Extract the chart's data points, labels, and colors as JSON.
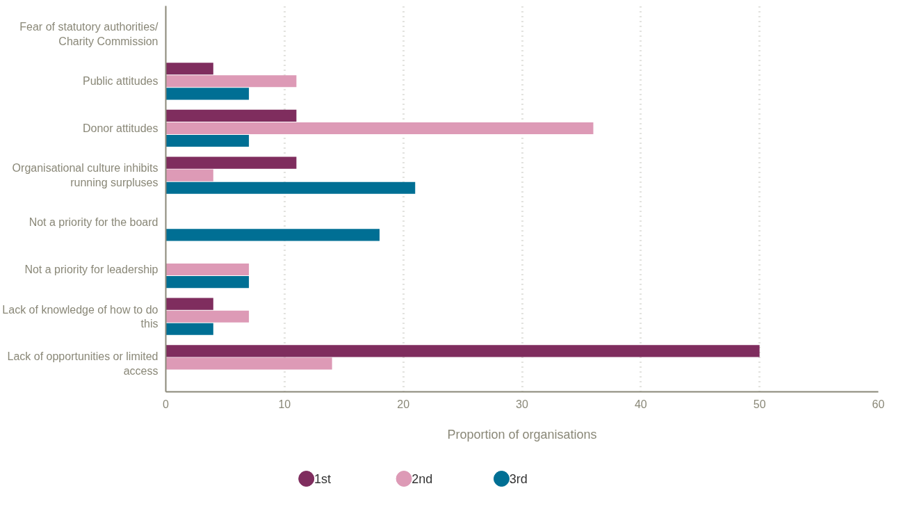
{
  "chart_data": {
    "type": "bar",
    "orientation": "horizontal",
    "xlabel": "Proportion of organisations",
    "categories": [
      "Fear of statutory authorities/ Charity Commission",
      "Public attitudes",
      "Donor attitudes",
      "Organisational culture inhibits running surpluses",
      "Not a priority for the board",
      "Not a priority for leadership",
      "Lack of knowledge of how to do this",
      "Lack of opportunities or limited access"
    ],
    "series": [
      {
        "name": "1st",
        "color": "#7f2d5e",
        "values": [
          0,
          4,
          11,
          11,
          0,
          0,
          4,
          50
        ]
      },
      {
        "name": "2nd",
        "color": "#dd9ab6",
        "values": [
          0,
          11,
          36,
          4,
          0,
          7,
          7,
          14
        ]
      },
      {
        "name": "3rd",
        "color": "#006f94",
        "values": [
          0,
          7,
          7,
          21,
          18,
          7,
          4,
          0
        ]
      }
    ],
    "xlim": [
      0,
      60
    ],
    "xticks": [
      0,
      10,
      20,
      30,
      40,
      50,
      60
    ],
    "grid": "x",
    "legend": "bottom"
  }
}
